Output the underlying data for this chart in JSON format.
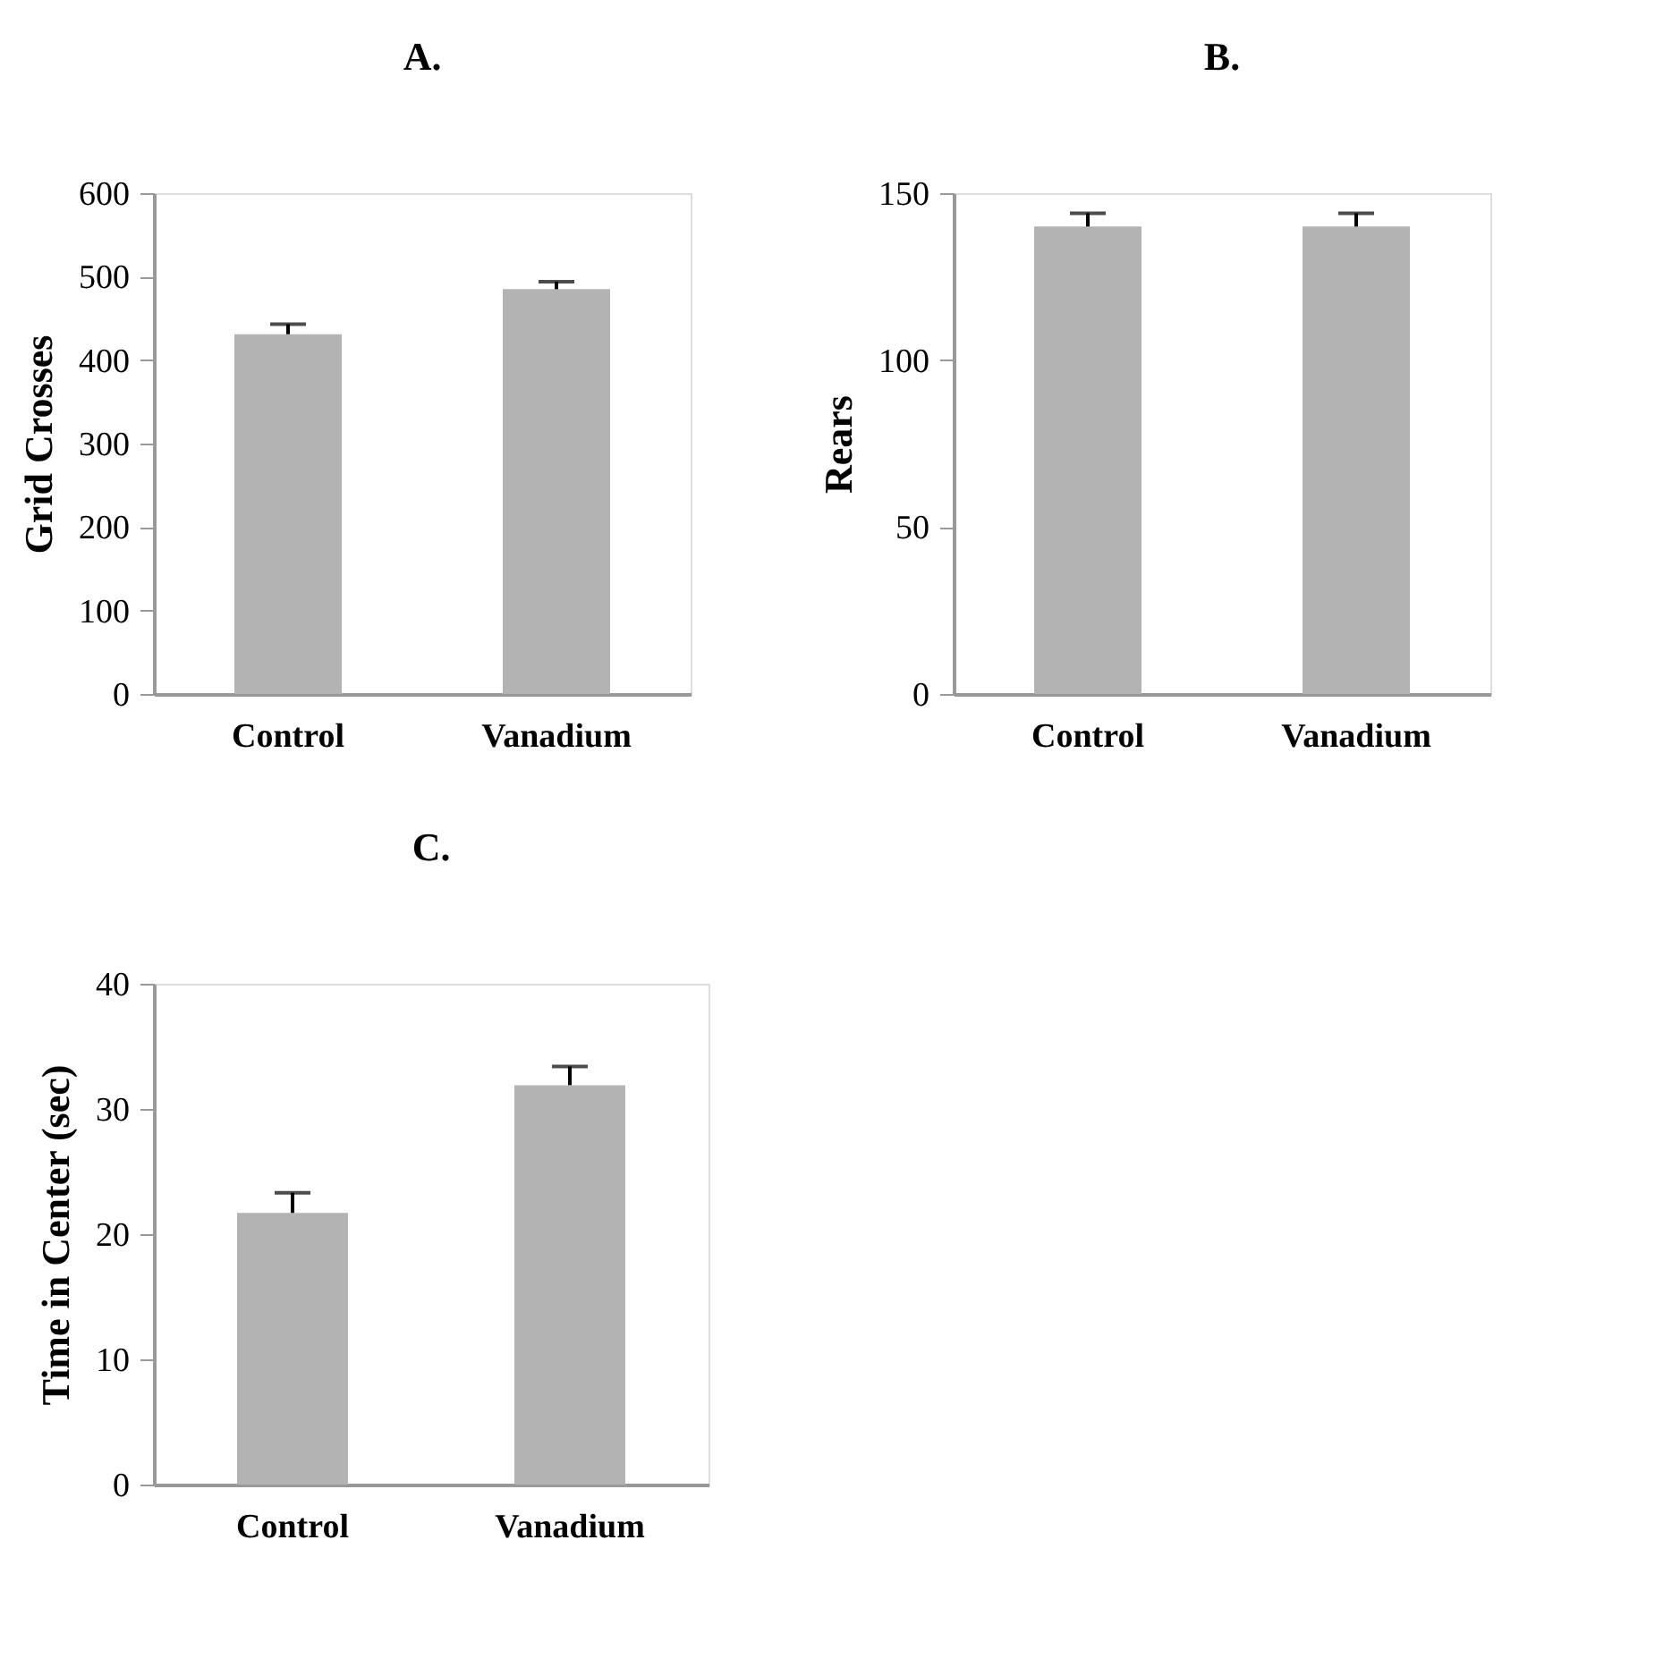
{
  "chart_data": [
    {
      "type": "bar",
      "title": "A.",
      "ylabel": "Grid Crosses",
      "categories": [
        "Control",
        "Vanadium"
      ],
      "values": [
        431,
        485
      ],
      "errors": [
        [
          431,
          443
        ],
        [
          485,
          494
        ]
      ],
      "color": "#b3b3b3",
      "ylim": [
        0,
        600
      ],
      "yticks": [
        0,
        100,
        200,
        300,
        400,
        500,
        600
      ],
      "grid": false
    },
    {
      "type": "bar",
      "title": "B.",
      "ylabel": "Rears",
      "categories": [
        "Control",
        "Vanadium"
      ],
      "values": [
        140,
        140
      ],
      "errors": [
        [
          140,
          144
        ],
        [
          140,
          144
        ]
      ],
      "color": "#b3b3b3",
      "ylim": [
        0,
        150
      ],
      "yticks": [
        0,
        50,
        100,
        150
      ],
      "grid": false
    },
    {
      "type": "bar",
      "title": "C.",
      "ylabel": "Time in Center (sec)",
      "categories": [
        "Control",
        "Vanadium"
      ],
      "values": [
        21.7,
        31.9
      ],
      "errors": [
        [
          21.7,
          23.3
        ],
        [
          31.9,
          33.4
        ]
      ],
      "color": "#b3b3b3",
      "ylim": [
        0,
        40
      ],
      "yticks": [
        0,
        10,
        20,
        30,
        40
      ],
      "grid": false
    }
  ]
}
